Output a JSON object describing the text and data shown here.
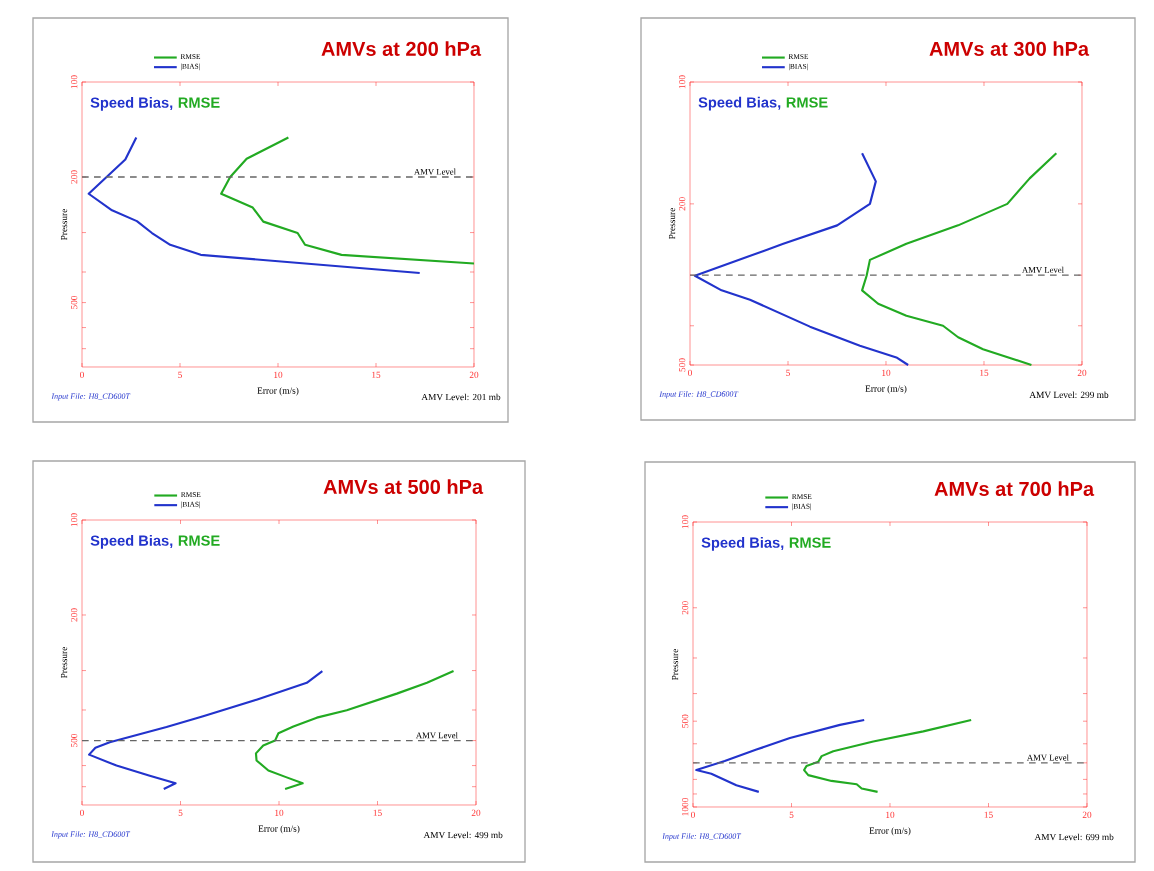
{
  "chart_data": [
    {
      "type": "line",
      "title": "AMVs at 200 hPa",
      "xlabel": "Error (m/s)",
      "ylabel": "Pressure",
      "log": "y",
      "xlim": [
        0,
        20
      ],
      "ylim": [
        800,
        100
      ],
      "xticks": [
        0,
        5,
        10,
        15,
        20
      ],
      "yticks": [
        100,
        200,
        {
          "value": 300,
          "label": null
        },
        {
          "value": 400,
          "label": null
        },
        500,
        {
          "value": 600,
          "label": null
        },
        {
          "value": 700,
          "label": null
        }
      ],
      "legend": "top",
      "line_style": "solid",
      "series": [
        {
          "name": "RMSE",
          "color": "#22aa22",
          "x": [
            10.53,
            8.4,
            7.56,
            7.1,
            8.71,
            9.25,
            11.0,
            11.38,
            13.24,
            20.0
          ],
          "values": [
            150,
            175,
            200,
            226,
            250,
            277,
            301,
            328,
            353,
            376
          ]
        },
        {
          "name": "|BIAS|",
          "color": "#2233cc",
          "x": [
            2.77,
            2.21,
            0.34,
            1.53,
            2.8,
            3.57,
            4.5,
            6.06,
            17.23
          ],
          "values": [
            150,
            176,
            226,
            255,
            276,
            301,
            328,
            353,
            403
          ]
        }
      ],
      "ref_lines": [
        {
          "axis": "y",
          "value": 200,
          "label": "AMV Level",
          "color": "#666666",
          "line_style": "dashed"
        }
      ],
      "annotations": [
        "Speed Bias,",
        "RMSE",
        "Input File: H8_CD600T",
        "AMV Level: 201 mb"
      ]
    },
    {
      "type": "line",
      "title": "AMVs at 300 hPa",
      "xlabel": "Error (m/s)",
      "ylabel": "Pressure",
      "log": "y",
      "xlim": [
        0,
        20
      ],
      "ylim": [
        500,
        100
      ],
      "xticks": [
        0,
        5,
        10,
        15,
        20
      ],
      "yticks": [
        100,
        200,
        {
          "value": 300,
          "label": null
        },
        {
          "value": 400,
          "label": null
        },
        500
      ],
      "legend": "top",
      "line_style": "solid",
      "series": [
        {
          "name": "RMSE",
          "color": "#22aa22",
          "x": [
            18.69,
            17.33,
            16.19,
            13.68,
            11.04,
            9.18,
            9.01,
            8.78,
            9.6,
            11.04,
            12.91,
            13.68,
            14.95,
            17.42
          ],
          "values": [
            150,
            173,
            200,
            226,
            251,
            275,
            301,
            327,
            353,
            378,
            400,
            427,
            457,
            500
          ]
        },
        {
          "name": "|BIAS|",
          "color": "#2233cc",
          "x": [
            8.78,
            9.48,
            9.18,
            7.51,
            4.76,
            0.25,
            1.61,
            3.06,
            6.12,
            8.67,
            10.53,
            11.13
          ],
          "values": [
            150,
            176,
            200,
            226,
            251,
            301,
            327,
            345,
            402,
            448,
            479,
            500
          ]
        }
      ],
      "ref_lines": [
        {
          "axis": "y",
          "value": 300,
          "label": "AMV Level",
          "color": "#666666",
          "line_style": "dashed"
        }
      ],
      "annotations": [
        "Speed Bias,",
        "RMSE",
        "Input File: H8_CD600T",
        "AMV Level: 299 mb"
      ]
    },
    {
      "type": "line",
      "title": "AMVs at 500 hPa",
      "xlabel": "Error (m/s)",
      "ylabel": "Pressure",
      "log": "y",
      "xlim": [
        0,
        20
      ],
      "ylim": [
        800,
        100
      ],
      "xticks": [
        0,
        5,
        10,
        15,
        20
      ],
      "yticks": [
        100,
        200,
        {
          "value": 300,
          "label": null
        },
        {
          "value": 400,
          "label": null
        },
        500,
        {
          "value": 600,
          "label": null
        },
        {
          "value": 700,
          "label": null
        }
      ],
      "legend": "top",
      "line_style": "solid",
      "series": [
        {
          "name": "RMSE",
          "color": "#22aa22",
          "x": [
            18.86,
            17.51,
            15.98,
            13.44,
            11.92,
            10.73,
            9.97,
            9.8,
            9.2,
            8.83,
            8.86,
            9.46,
            10.39,
            11.2,
            10.31
          ],
          "values": [
            301,
            328,
            355,
            401,
            423,
            451,
            474,
            500,
            518,
            549,
            578,
            622,
            654,
            683,
            712
          ]
        },
        {
          "name": "|BIAS|",
          "color": "#2233cc",
          "x": [
            12.2,
            11.41,
            8.86,
            6.15,
            4.29,
            1.41,
            0.68,
            0.36,
            1.75,
            3.44,
            4.75,
            4.15
          ],
          "values": [
            301,
            328,
            371,
            419,
            453,
            506,
            527,
            554,
            600,
            646,
            683,
            712
          ]
        }
      ],
      "ref_lines": [
        {
          "axis": "y",
          "value": 500,
          "label": "AMV Level",
          "color": "#666666",
          "line_style": "dashed"
        }
      ],
      "annotations": [
        "Speed Bias,",
        "RMSE",
        "Input File: H8_CD600T",
        "AMV Level: 499 mb"
      ]
    },
    {
      "type": "line",
      "title": "AMVs at 700 hPa",
      "xlabel": "Error (m/s)",
      "ylabel": "Pressure",
      "log": "y",
      "xlim": [
        0,
        20
      ],
      "ylim": [
        1000,
        100
      ],
      "xticks": [
        0,
        5,
        10,
        15,
        20
      ],
      "yticks": [
        100,
        200,
        {
          "value": 300,
          "label": null
        },
        {
          "value": 400,
          "label": null
        },
        500,
        {
          "value": 600,
          "label": null
        },
        {
          "value": 700,
          "label": null
        },
        {
          "value": 800,
          "label": null
        },
        {
          "value": 900,
          "label": null
        },
        1000
      ],
      "legend": "top",
      "line_style": "solid",
      "series": [
        {
          "name": "RMSE",
          "color": "#22aa22",
          "x": [
            14.12,
            11.69,
            9.15,
            7.12,
            6.53,
            6.36,
            5.76,
            5.64,
            5.85,
            7.03,
            8.31,
            8.56,
            9.37
          ],
          "values": [
            495,
            543,
            589,
            637,
            663,
            694,
            718,
            742,
            773,
            810,
            832,
            861,
            885
          ]
        },
        {
          "name": "|BIAS|",
          "color": "#2233cc",
          "x": [
            8.69,
            7.46,
            4.92,
            3.22,
            1.61,
            0.17,
            0.93,
            2.2,
            3.34
          ],
          "values": [
            495,
            515,
            573,
            629,
            690,
            742,
            764,
            839,
            885
          ]
        }
      ],
      "ref_lines": [
        {
          "axis": "y",
          "value": 700,
          "label": "AMV Level",
          "color": "#666666",
          "line_style": "dashed"
        }
      ],
      "annotations": [
        "Speed Bias,",
        "RMSE",
        "Input File: H8_CD600T",
        "AMV Level: 699 mb"
      ]
    }
  ]
}
